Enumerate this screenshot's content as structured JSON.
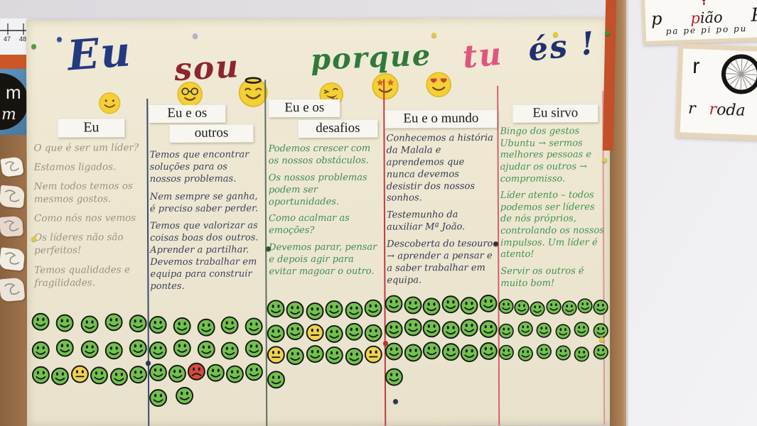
{
  "scene": {
    "description": "Classroom cork board photo with a handwritten Ubuntu leadership poster",
    "colors": {
      "poster": "#ece6d0",
      "cork": "#9c7148",
      "wall": "#e3e1e5",
      "wall_right": "#efeef1",
      "orange_trim": "#cc5627",
      "card_blue": "#4e86b2",
      "smiley_happy": "#72c14e",
      "smiley_neutral": "#f0d34c",
      "smiley_sad": "#d84a39",
      "emoji_yellow": "#f4cf35",
      "pencil_ink": "#9a9280",
      "blue_ink": "#39415a",
      "dark_ink": "#343a50",
      "green_ink": "#3e8d4e"
    }
  },
  "poster": {
    "title": {
      "words": [
        {
          "text": "Eu",
          "color": "#243a80"
        },
        {
          "text": "sou",
          "color": "#8e2430"
        },
        {
          "text": "porque",
          "color": "#2f7a3a"
        },
        {
          "text": "tu",
          "color": "#e0557f"
        },
        {
          "text": "és !",
          "color": "#20306e"
        }
      ]
    },
    "emoji_row": [
      "smile-emoji",
      "glasses-emoji",
      "halo-emoji",
      "wink-emoji",
      "starstruck-emoji",
      "heart-eyes-emoji"
    ],
    "columns": [
      {
        "id": "eu",
        "labels": [
          "Eu"
        ],
        "ink": "#9a9280",
        "paragraphs": [
          "O que é ser um líder?",
          "Estamos ligados.",
          "Nem todos temos os mesmos gostos.",
          "Como nós nos vemos",
          "Os líderes não são perfeitos!",
          "Temos qualidades e fragilidades."
        ],
        "sticker_rows": [
          [
            "happy",
            "happy",
            "happy",
            "happy",
            "happy"
          ],
          [
            "happy",
            "happy",
            "happy",
            "happy",
            "happy"
          ],
          [
            "happy",
            "happy",
            "neutral",
            "happy",
            "happy",
            "happy"
          ]
        ]
      },
      {
        "id": "eu-e-os-outros",
        "labels": [
          "Eu e os",
          "outros"
        ],
        "ink": "#39415a",
        "paragraphs": [
          "Temos que encontrar soluções para os nossos problemas.",
          "Nem sempre se ganha, é preciso saber perder.",
          "Temos que valorizar as coisas boas dos outros. Aprender a partilhar. Devemos trabalhar em equipa para construir pontes."
        ],
        "sticker_rows": [
          [
            "happy",
            "happy",
            "happy",
            "happy",
            "happy"
          ],
          [
            "happy",
            "happy",
            "happy",
            "happy",
            "happy"
          ],
          [
            "happy",
            "happy",
            "sad",
            "happy",
            "happy",
            "happy"
          ],
          [
            "happy",
            "happy"
          ]
        ]
      },
      {
        "id": "eu-e-os-desafios",
        "labels": [
          "Eu e os",
          "desafios"
        ],
        "ink": "#3e8d4e",
        "paragraphs": [
          "Podemos crescer com os nossos obstáculos.",
          "Os nossos problemas podem ser oportunidades.",
          "Como acalmar as emoções?",
          "Devemos parar, pensar e depois agir para evitar magoar o outro."
        ],
        "sticker_rows": [
          [
            "happy",
            "happy",
            "happy",
            "happy",
            "happy",
            "happy"
          ],
          [
            "happy",
            "happy",
            "neutral",
            "happy",
            "happy",
            "happy"
          ],
          [
            "neutral",
            "happy",
            "happy",
            "happy",
            "happy",
            "neutral"
          ],
          [
            "happy"
          ]
        ]
      },
      {
        "id": "eu-e-o-mundo",
        "labels": [
          "Eu e o mundo"
        ],
        "ink": "#343a50",
        "paragraphs": [
          "Conhecemos a história da Malala e aprendemos que nunca devemos desistir dos nossos sonhos.",
          "Testemunho da auxiliar Mª João.",
          "Descoberta do tesouro → aprender a pensar e a saber trabalhar em equipa."
        ],
        "sticker_rows": [
          [
            "happy",
            "happy",
            "happy",
            "happy",
            "happy",
            "happy"
          ],
          [
            "happy",
            "happy",
            "happy",
            "happy",
            "happy",
            "happy"
          ],
          [
            "happy",
            "happy",
            "happy",
            "happy",
            "happy",
            "happy"
          ],
          [
            "happy"
          ]
        ]
      },
      {
        "id": "eu-sirvo",
        "labels": [
          "Eu sirvo"
        ],
        "ink": "#41934f",
        "paragraphs": [
          "Bingo dos gestos Ubuntu → sermos melhores pessoas e ajudar os outros → compromisso.",
          "Líder atento – todos podemos ser líderes de nós próprios, controlando os nossos impulsos. Um líder é atento!",
          "Servir os outros é muito bom!"
        ],
        "sticker_rows": [
          [
            "happy",
            "happy",
            "happy",
            "happy",
            "happy",
            "happy",
            "happy"
          ],
          [
            "happy",
            "happy",
            "happy",
            "happy",
            "happy",
            "happy"
          ],
          [
            "happy",
            "happy",
            "happy",
            "happy",
            "happy",
            "happy"
          ]
        ]
      }
    ]
  },
  "left_wall": {
    "number_line": [
      "47",
      "48"
    ],
    "letter_card": {
      "print": "m",
      "cursive": "m"
    }
  },
  "right_wall": {
    "card_p": {
      "cursive_lower": "p",
      "word": "pião",
      "cursive_upper": "P",
      "syllables": "pa pe pi po pu"
    },
    "card_r": {
      "print": "r",
      "cursive": "r",
      "word": "roda"
    }
  }
}
